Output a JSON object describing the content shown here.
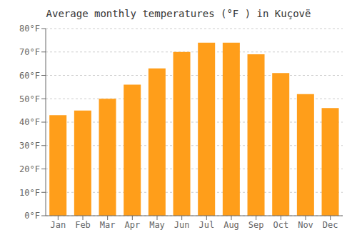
{
  "chart_data": {
    "type": "bar",
    "title": "Average monthly temperatures (°F ) in Kuçovë",
    "categories": [
      "Jan",
      "Feb",
      "Mar",
      "Apr",
      "May",
      "Jun",
      "Jul",
      "Aug",
      "Sep",
      "Oct",
      "Nov",
      "Dec"
    ],
    "values": [
      43,
      45,
      50,
      56,
      63,
      70,
      74,
      74,
      69,
      61,
      52,
      46
    ],
    "color": "#ff9e1a",
    "ylim": [
      0,
      80
    ],
    "yticks": [
      {
        "value": 0,
        "label": "0°F"
      },
      {
        "value": 10,
        "label": "10°F"
      },
      {
        "value": 20,
        "label": "20°F"
      },
      {
        "value": 30,
        "label": "30°F"
      },
      {
        "value": 40,
        "label": "40°F"
      },
      {
        "value": 50,
        "label": "50°F"
      },
      {
        "value": 60,
        "label": "60°F"
      },
      {
        "value": 70,
        "label": "70°F"
      },
      {
        "value": 80,
        "label": "80°F"
      }
    ],
    "grid": true
  }
}
